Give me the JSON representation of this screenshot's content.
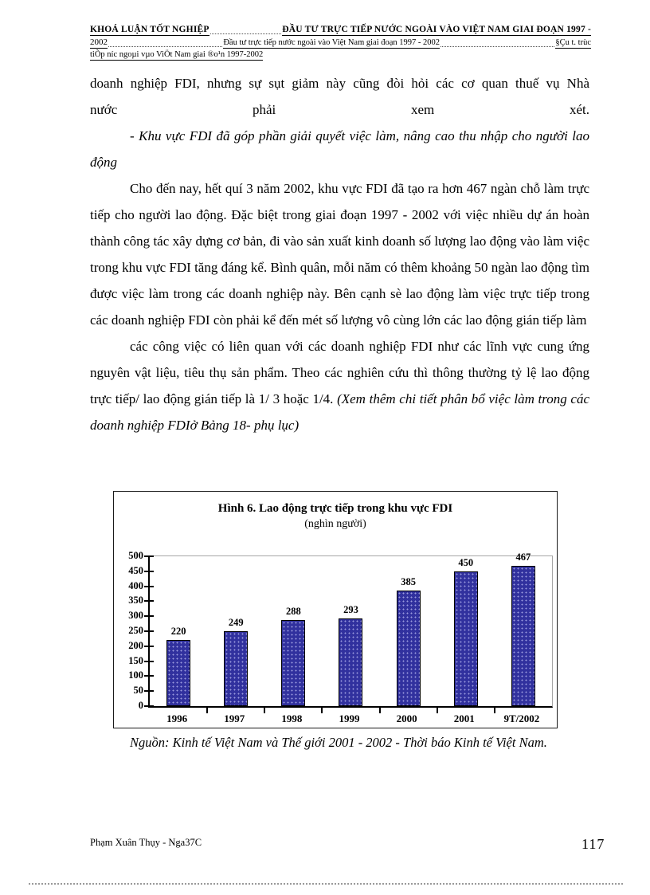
{
  "header": {
    "line1_left": "KHOÁ LUẬN TỐT NGHIỆP",
    "line1_right": "ĐẦU TƯ TRỰC TIẾP NƯỚC NGOÀI VÀO VIỆT NAM GIAI ĐOẠN 1997 -",
    "line2_left": "2002",
    "line2_mid": "Đầu tư trực tiếp nước ngoài vào Việt Nam giai đoạn 1997 - 2002",
    "line2_right": "§Çu t. trùc",
    "line3": "tiÕp níc  ngoµi vµo ViÖt Nam giai ®o¹n 1997-2002"
  },
  "body": {
    "para1_line1": "doanh nghiệp FDI, nhưng sự sụt giảm này cũng đòi hỏi các cơ quan thuế vụ Nhà",
    "para1_line2": "nước phải xem xét.",
    "para2_italic": "- Khu vực  FDI đã góp phần giải quyết việc làm, nâng cao thu nhập cho người lao động",
    "para3": "Cho đến nay, hết quí 3 năm 2002, khu vực FDI đã tạo ra hơn 467 ngàn chỗ làm trực tiếp cho người lao động. Đặc biệt trong giai đoạn 1997 - 2002 với việc nhiều dự án hoàn thành công tác xây dựng cơ bản, đi vào sản xuất kinh doanh số lượng lao động vào làm việc trong khu vực FDI tăng đáng kể. Bình quân, mỗi năm có thêm khoảng 50 ngàn lao động tìm được việc làm trong các doanh nghiệp này. Bên cạnh sè lao động làm việc trực tiếp trong các doanh nghiệp FDI còn phải kể đến mét số lượng vô cùng lớn các lao động gián tiếp làm",
    "para4_regular": "các công việc có liên quan với các doanh nghiệp FDI như các lĩnh vực cung ứng nguyên vật liệu, tiêu thụ sản phẩm. Theo các nghiên cứu thì thông thường tỷ lệ lao động trực tiếp/ lao động gián tiếp là 1/ 3 hoặc 1/4. ",
    "para4_italic": "(Xem thêm chi tiết phân bổ việc làm trong các doanh nghiệp FDIở Bảng 18- phụ lục)"
  },
  "chart_data": {
    "type": "bar",
    "title": "Hình 6. Lao động trực tiếp trong khu vực FDI",
    "subtitle": "(nghìn người)",
    "categories": [
      "1996",
      "1997",
      "1998",
      "1999",
      "2000",
      "2001",
      "9T/2002"
    ],
    "values": [
      220,
      249,
      288,
      293,
      385,
      450,
      467
    ],
    "xlabel": "",
    "ylabel": "",
    "ylim": [
      0,
      500
    ],
    "ytick_step": 50,
    "bar_color": "#31319e",
    "grid": false,
    "legend": "none"
  },
  "source_note": "Nguồn: Kinh tế Việt Nam và Thế giới 2001 - 2002 - Thời báo Kinh tế Việt Nam.",
  "footer": {
    "author": "Phạm Xuân Thụy - Nga37C",
    "page_number": "117"
  }
}
